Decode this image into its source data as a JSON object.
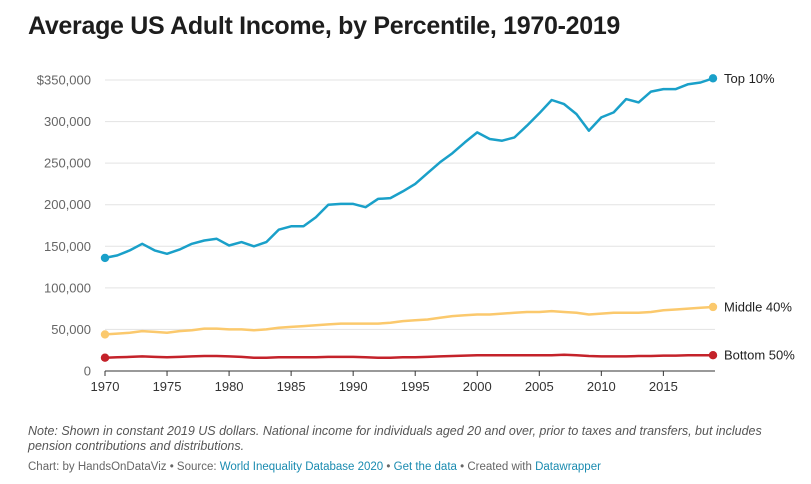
{
  "title": "Average US Adult Income, by Percentile, 1970-2019",
  "note": "Note: Shown in constant 2019 US dollars. National income for individuals aged 20 and over, prior to taxes and transfers, but includes pension contributions and distributions.",
  "credit": {
    "prefix": "Chart: by HandsOnDataViz • Source: ",
    "source_link": "World Inequality Database 2020",
    "sep1": " • ",
    "data_link": "Get the data",
    "sep2": " • Created with ",
    "tool_link": "Datawrapper"
  },
  "colors": {
    "top": "#1aa0c9",
    "middle": "#fbc96d",
    "bottom": "#c4222a",
    "grid": "#e3e3e3"
  },
  "chart_data": {
    "type": "line",
    "title": "Average US Adult Income, by Percentile, 1970-2019",
    "xlabel": "",
    "ylabel": "",
    "xlim": [
      1970,
      2019
    ],
    "ylim": [
      0,
      350000
    ],
    "grid": true,
    "legend": "direct labels at line ends (right)",
    "x_ticks": [
      1970,
      1975,
      1980,
      1985,
      1990,
      1995,
      2000,
      2005,
      2010,
      2015
    ],
    "y_ticks": [
      0,
      50000,
      100000,
      150000,
      200000,
      250000,
      300000,
      350000
    ],
    "y_tick_labels": [
      "0",
      "50,000",
      "100,000",
      "150,000",
      "200,000",
      "250,000",
      "300,000",
      "$350,000"
    ],
    "x": [
      1970,
      1971,
      1972,
      1973,
      1974,
      1975,
      1976,
      1977,
      1978,
      1979,
      1980,
      1981,
      1982,
      1983,
      1984,
      1985,
      1986,
      1987,
      1988,
      1989,
      1990,
      1991,
      1992,
      1993,
      1994,
      1995,
      1996,
      1997,
      1998,
      1999,
      2000,
      2001,
      2002,
      2003,
      2004,
      2005,
      2006,
      2007,
      2008,
      2009,
      2010,
      2011,
      2012,
      2013,
      2014,
      2015,
      2016,
      2017,
      2018,
      2019
    ],
    "series": [
      {
        "name": "Top 10%",
        "key": "top",
        "values": [
          136000,
          139000,
          145000,
          153000,
          145000,
          141000,
          146000,
          153000,
          157000,
          159000,
          151000,
          155000,
          150000,
          155000,
          170000,
          174000,
          174000,
          185000,
          200000,
          201000,
          201000,
          197000,
          207000,
          208000,
          216000,
          225000,
          238000,
          251000,
          262000,
          275000,
          287000,
          279000,
          277000,
          281000,
          295000,
          310000,
          326000,
          321000,
          309000,
          289000,
          305000,
          311000,
          327000,
          323000,
          336000,
          339000,
          339000,
          345000,
          347000,
          352000
        ]
      },
      {
        "name": "Middle 40%",
        "key": "middle",
        "values": [
          44000,
          45000,
          46000,
          48000,
          47000,
          46000,
          48000,
          49000,
          51000,
          51000,
          50000,
          50000,
          49000,
          50000,
          52000,
          53000,
          54000,
          55000,
          56000,
          57000,
          57000,
          57000,
          57000,
          58000,
          60000,
          61000,
          62000,
          64000,
          66000,
          67000,
          68000,
          68000,
          69000,
          70000,
          71000,
          71000,
          72000,
          71000,
          70000,
          68000,
          69000,
          70000,
          70000,
          70000,
          71000,
          73000,
          74000,
          75000,
          76000,
          77000
        ]
      },
      {
        "name": "Bottom 50%",
        "key": "bottom",
        "values": [
          16000,
          16500,
          17000,
          17500,
          17000,
          16500,
          17000,
          17500,
          18000,
          18000,
          17500,
          17000,
          16000,
          16000,
          16500,
          16500,
          16500,
          16500,
          17000,
          17000,
          17000,
          16500,
          16000,
          16000,
          16500,
          16500,
          17000,
          17500,
          18000,
          18500,
          19000,
          19000,
          19000,
          19000,
          19000,
          19000,
          19000,
          19500,
          19000,
          18000,
          17500,
          17500,
          17500,
          18000,
          18000,
          18500,
          18500,
          19000,
          19000,
          19000
        ]
      }
    ]
  }
}
